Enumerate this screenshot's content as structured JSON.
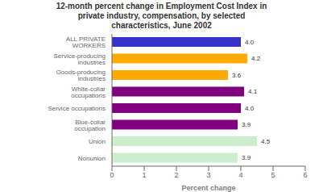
{
  "chart_data": {
    "type": "bar",
    "orientation": "horizontal",
    "title": "12-month percent change in Employment Cost Index in\nprivate industry, compensation, by selected\ncharacteristics, June 2002",
    "categories": [
      "ALL PRIVATE WORKERS",
      "Service-producing industries",
      "Goods-producing industries",
      "White-collar occupations",
      "Service occupations",
      "Blue-collar occupation",
      "Union",
      "Nonunion"
    ],
    "values": [
      4.0,
      4.2,
      3.6,
      4.1,
      4.0,
      3.9,
      4.5,
      3.9
    ],
    "value_labels": [
      "4.0",
      "4.2",
      "3.6",
      "4.1",
      "4.0",
      "3.9",
      "4.5",
      "3.9"
    ],
    "data_labels": true,
    "colors": [
      "#3333cc",
      "#ffaa00",
      "#ffaa00",
      "#800080",
      "#800080",
      "#800080",
      "#cceecc",
      "#cceecc"
    ],
    "xlabel": "Percent change",
    "xlim": [
      0,
      6
    ],
    "xticks": [
      0,
      1,
      2,
      3,
      4,
      5,
      6
    ],
    "grid": false
  }
}
